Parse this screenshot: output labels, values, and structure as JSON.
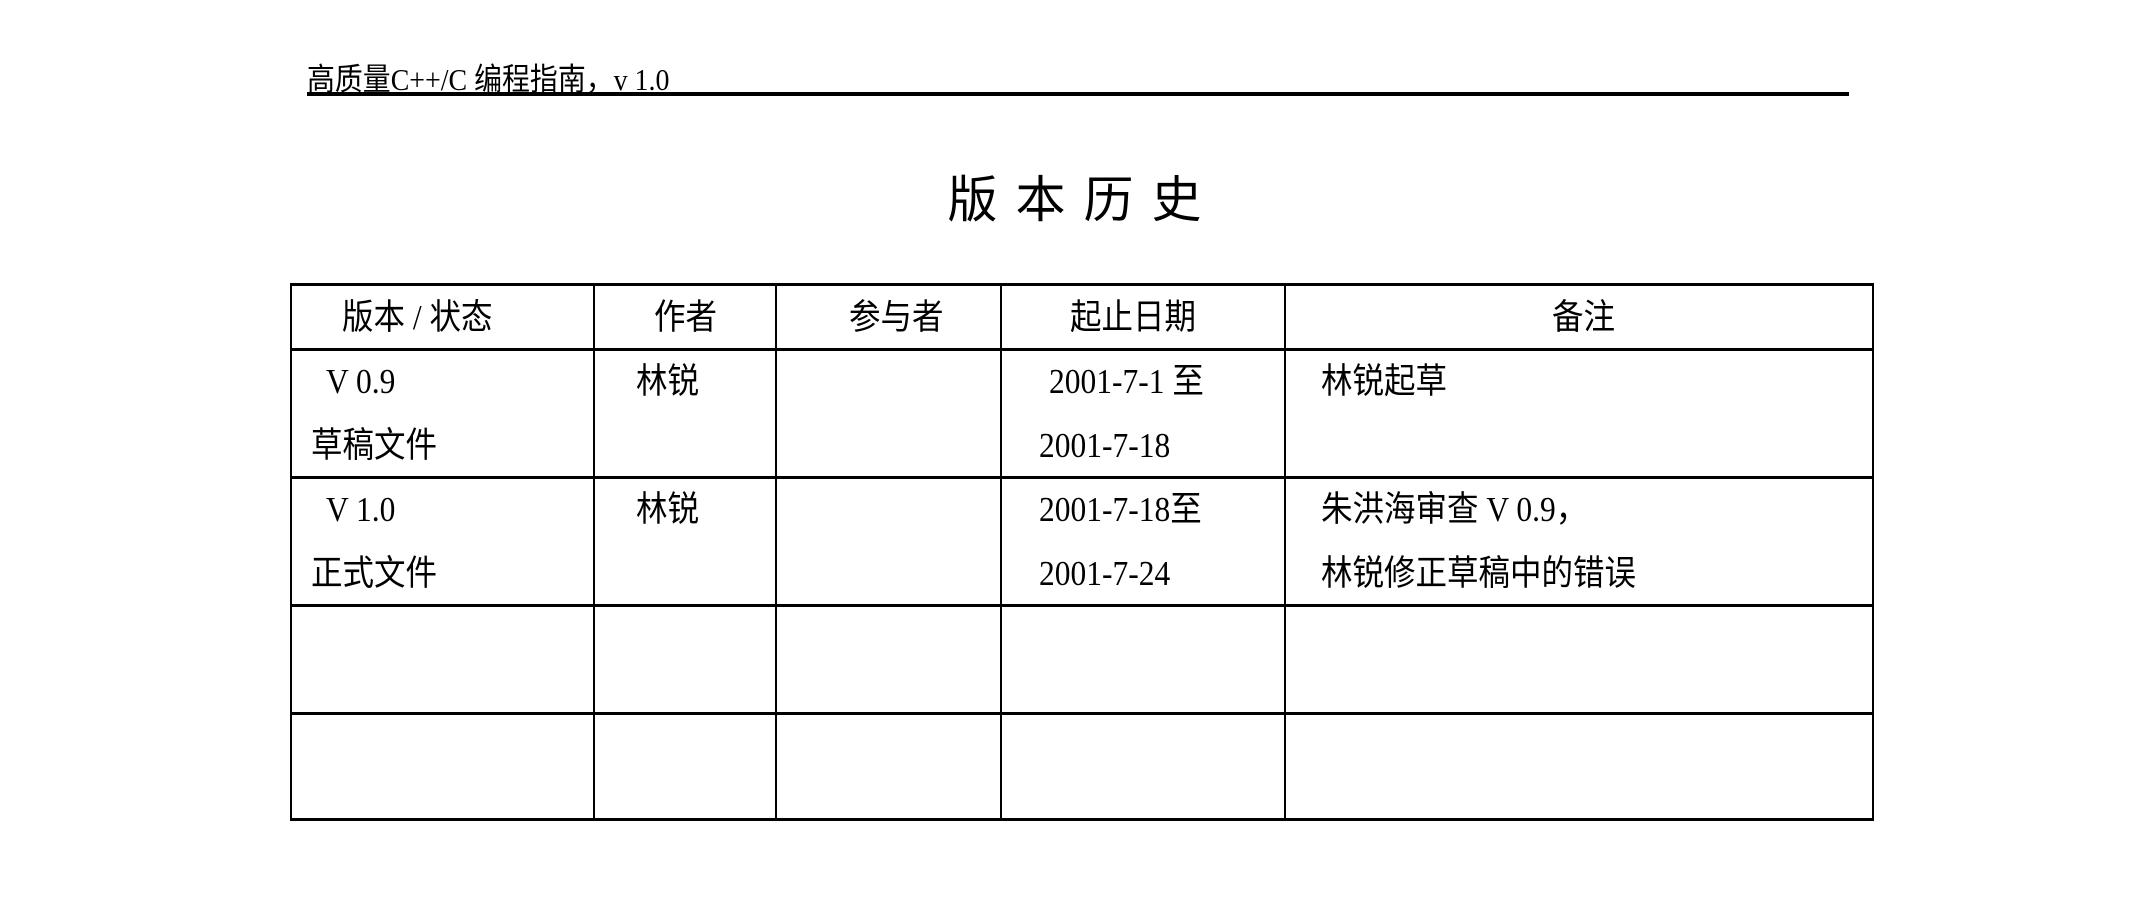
{
  "header": {
    "running_title": "高质量C++/C 编程指南，v 1.0"
  },
  "page_title": "版本历史",
  "table": {
    "columns": [
      "版本 / 状态",
      "作者",
      "参与者",
      "起止日期",
      "备注"
    ],
    "rows": [
      {
        "version": "V 0.9",
        "status": "草稿文件",
        "author": "林锐",
        "participants": "",
        "date_start": "2001-7-1 至",
        "date_end": "2001-7-18",
        "notes_1": "林锐起草",
        "notes_2": ""
      },
      {
        "version": "V 1.0",
        "status": "正式文件",
        "author": "林锐",
        "participants": "",
        "date_start": "2001-7-18至",
        "date_end": "2001-7-24",
        "notes_1": "朱洪海审查 V 0.9，",
        "notes_2": "林锐修正草稿中的错误"
      },
      {
        "version": "",
        "status": "",
        "author": "",
        "participants": "",
        "date_start": "",
        "date_end": "",
        "notes_1": "",
        "notes_2": ""
      },
      {
        "version": "",
        "status": "",
        "author": "",
        "participants": "",
        "date_start": "",
        "date_end": "",
        "notes_1": "",
        "notes_2": ""
      }
    ]
  }
}
